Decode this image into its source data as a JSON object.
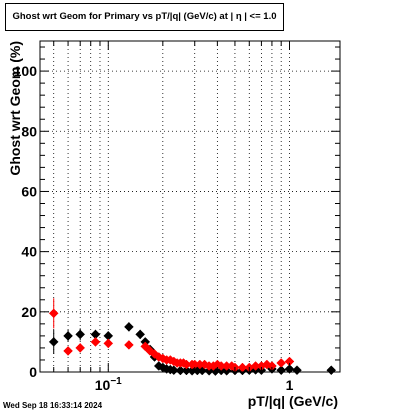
{
  "chart_data": {
    "type": "scatter",
    "title": "Ghost wrt Geom for Primary vs pT/|q| (GeV/c) at |  η  | <= 1.0",
    "xlabel": "pT/|q| (GeV/c)",
    "ylabel": "Ghost wrt Geom (%)",
    "x_scale": "log",
    "xlim": [
      0.042,
      1.9
    ],
    "ylim": [
      0,
      110
    ],
    "grid": true,
    "x_tick_labels": [
      {
        "value": 0.1,
        "label": "10",
        "exponent": "−1"
      },
      {
        "value": 1,
        "label": "1",
        "exponent": ""
      }
    ],
    "y_ticks": [
      0,
      20,
      40,
      60,
      80,
      100
    ],
    "series": [
      {
        "color": "#000000",
        "marker": "diamond",
        "x": [
          0.05,
          0.06,
          0.07,
          0.085,
          0.1,
          0.13,
          0.15,
          0.16,
          0.17,
          0.18,
          0.19,
          0.2,
          0.21,
          0.22,
          0.23,
          0.25,
          0.27,
          0.29,
          0.31,
          0.33,
          0.36,
          0.39,
          0.42,
          0.45,
          0.5,
          0.55,
          0.6,
          0.65,
          0.7,
          0.8,
          0.9,
          1.0,
          1.1,
          1.7
        ],
        "y": [
          10,
          12,
          12.5,
          12.5,
          12,
          15,
          12.5,
          10,
          7.5,
          5,
          2,
          1.5,
          1,
          0.8,
          0.6,
          0.5,
          0.5,
          0.4,
          0.5,
          0.5,
          0.4,
          0.3,
          0.5,
          0.4,
          0.5,
          0.5,
          0.6,
          0.7,
          0.6,
          1,
          0.6,
          1,
          0.6,
          0.6
        ],
        "yerr": [
          4,
          2,
          2,
          1.5,
          1.5,
          1.5,
          1.5,
          1.2,
          1,
          1,
          0.8,
          0.6,
          0.5,
          0.4,
          0.3,
          0.3,
          0.3,
          0.2,
          0.3,
          0.3,
          0.2,
          0.2,
          0.3,
          0.2,
          0.3,
          0.3,
          0.3,
          0.3,
          0.3,
          0.5,
          0.3,
          0.5,
          0.3,
          0.3
        ]
      },
      {
        "color": "#ff0000",
        "marker": "diamond",
        "x": [
          0.05,
          0.06,
          0.07,
          0.085,
          0.1,
          0.13,
          0.16,
          0.17,
          0.18,
          0.19,
          0.2,
          0.21,
          0.22,
          0.23,
          0.24,
          0.25,
          0.26,
          0.27,
          0.29,
          0.3,
          0.32,
          0.34,
          0.36,
          0.38,
          0.4,
          0.42,
          0.45,
          0.48,
          0.5,
          0.55,
          0.6,
          0.65,
          0.7,
          0.75,
          0.8,
          0.9,
          1.0
        ],
        "y": [
          19.5,
          7,
          8,
          10,
          9.5,
          9,
          8.5,
          7,
          6,
          5,
          4.5,
          4,
          4,
          3.5,
          3,
          3,
          3,
          2.5,
          2.5,
          2.5,
          2.5,
          2.5,
          2,
          2,
          2.5,
          2,
          2,
          2,
          1.5,
          1.5,
          1.5,
          2,
          2,
          2.5,
          2,
          3,
          3.5
        ],
        "yerr": [
          5,
          1.5,
          1.5,
          1.5,
          1.5,
          1,
          1,
          1,
          1,
          0.8,
          0.8,
          0.7,
          0.7,
          0.6,
          0.6,
          0.6,
          0.6,
          0.5,
          0.5,
          0.5,
          0.5,
          0.5,
          0.5,
          0.5,
          0.5,
          0.5,
          0.5,
          0.5,
          0.5,
          0.5,
          0.5,
          0.6,
          0.6,
          0.6,
          0.6,
          0.8,
          0.8
        ]
      }
    ]
  },
  "timestamp": "Wed Sep 18 16:33:14 2024"
}
